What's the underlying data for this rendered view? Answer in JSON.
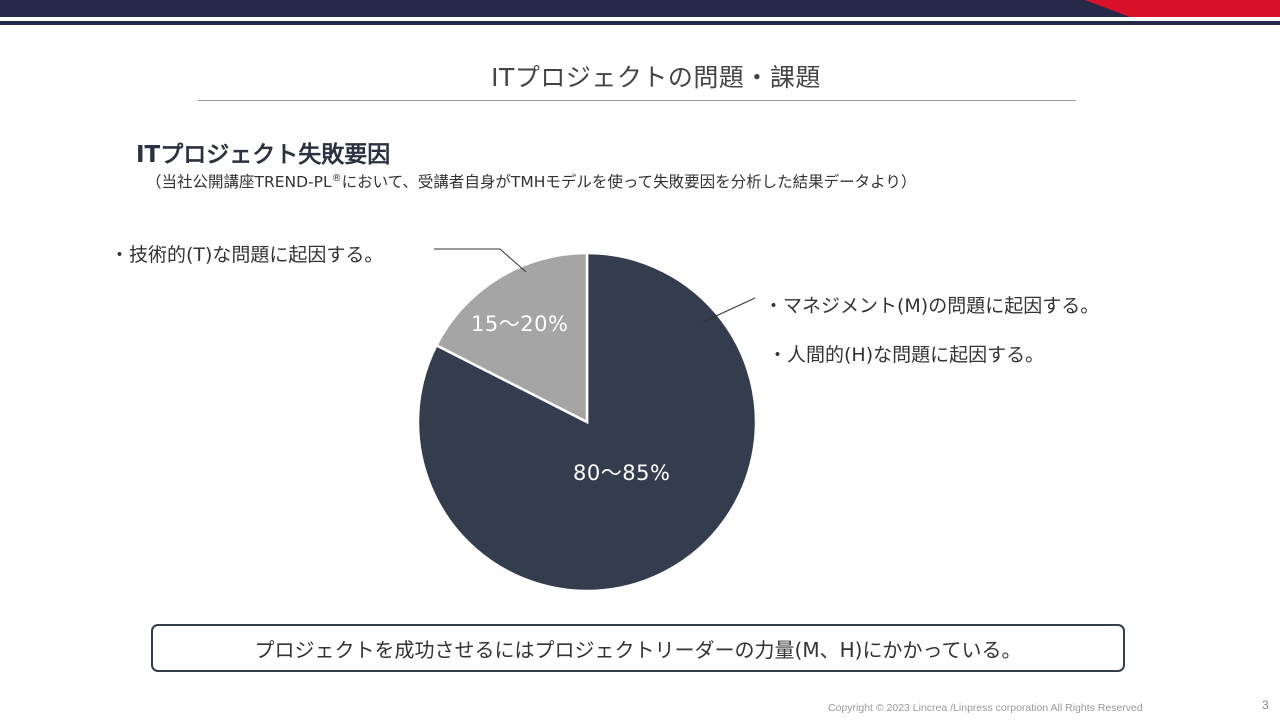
{
  "slide": {
    "title": "ITプロジェクトの問題・課題",
    "heading": "ITプロジェクト失敗要因",
    "note_pre": "（当社公開講座TREND-PL",
    "note_sup": "®",
    "note_post": "において、受講者自身がTMHモデルを使って失敗要因を分析した結果データより）",
    "conclusion": "プロジェクトを成功させるにはプロジェクトリーダーの力量(M、H)にかかっている。",
    "copyright": "Copyright © 2023 Lincrea  /Linpress corporation All Rights Reserved",
    "page_number": "3"
  },
  "colors": {
    "band_navy": "#262a48",
    "band_red": "#d9112b",
    "slice_dark": "#333d4e",
    "slice_light": "#a5a5a5"
  },
  "chart_data": {
    "type": "pie",
    "slices": [
      {
        "label": "・マネジメント(M)の問題に起因する。",
        "label2": "・人間的(H)な問題に起因する。",
        "value_text": "80～85%",
        "value": 82.5
      },
      {
        "label": "・技術的(T)な問題に起因する。",
        "value_text": "15～20%",
        "value": 17.5
      }
    ]
  }
}
